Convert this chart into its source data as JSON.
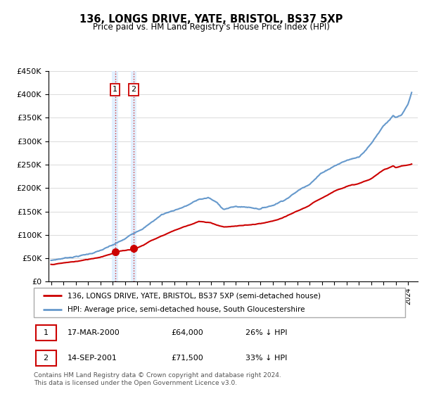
{
  "title": "136, LONGS DRIVE, YATE, BRISTOL, BS37 5XP",
  "subtitle": "Price paid vs. HM Land Registry's House Price Index (HPI)",
  "legend_label_red": "136, LONGS DRIVE, YATE, BRISTOL, BS37 5XP (semi-detached house)",
  "legend_label_blue": "HPI: Average price, semi-detached house, South Gloucestershire",
  "footer": "Contains HM Land Registry data © Crown copyright and database right 2024.\nThis data is licensed under the Open Government Licence v3.0.",
  "sale1_date": "17-MAR-2000",
  "sale1_price": 64000,
  "sale1_pct": "26% ↓ HPI",
  "sale1_x": 2000.21,
  "sale2_date": "14-SEP-2001",
  "sale2_price": 71500,
  "sale2_pct": "33% ↓ HPI",
  "sale2_x": 2001.71,
  "ylim": [
    0,
    450000
  ],
  "xlim_left": 1994.8,
  "xlim_right": 2024.8,
  "red_color": "#cc0000",
  "blue_color": "#6699cc",
  "shade_color": "#ddeeff",
  "hpi_keypoints": [
    [
      1995.0,
      45000
    ],
    [
      1996.0,
      50000
    ],
    [
      1997.0,
      55000
    ],
    [
      1998.0,
      60000
    ],
    [
      1999.0,
      68000
    ],
    [
      2000.0,
      78000
    ],
    [
      2001.0,
      90000
    ],
    [
      2002.0,
      108000
    ],
    [
      2003.0,
      125000
    ],
    [
      2004.0,
      145000
    ],
    [
      2005.0,
      155000
    ],
    [
      2006.0,
      165000
    ],
    [
      2007.0,
      178000
    ],
    [
      2007.8,
      182000
    ],
    [
      2008.5,
      170000
    ],
    [
      2009.0,
      158000
    ],
    [
      2010.0,
      163000
    ],
    [
      2011.0,
      162000
    ],
    [
      2012.0,
      160000
    ],
    [
      2013.0,
      168000
    ],
    [
      2014.0,
      182000
    ],
    [
      2015.0,
      200000
    ],
    [
      2016.0,
      218000
    ],
    [
      2017.0,
      242000
    ],
    [
      2018.0,
      258000
    ],
    [
      2019.0,
      270000
    ],
    [
      2020.0,
      278000
    ],
    [
      2021.0,
      308000
    ],
    [
      2022.0,
      348000
    ],
    [
      2022.8,
      370000
    ],
    [
      2023.0,
      365000
    ],
    [
      2023.5,
      370000
    ],
    [
      2024.0,
      390000
    ],
    [
      2024.3,
      415000
    ]
  ],
  "red_keypoints": [
    [
      1995.0,
      37000
    ],
    [
      1996.0,
      40000
    ],
    [
      1997.0,
      43000
    ],
    [
      1998.0,
      47000
    ],
    [
      1999.0,
      53000
    ],
    [
      2000.21,
      64000
    ],
    [
      2001.71,
      71500
    ],
    [
      2002.5,
      80000
    ],
    [
      2003.0,
      88000
    ],
    [
      2004.0,
      100000
    ],
    [
      2005.0,
      112000
    ],
    [
      2006.0,
      122000
    ],
    [
      2007.0,
      132000
    ],
    [
      2008.0,
      128000
    ],
    [
      2009.0,
      120000
    ],
    [
      2010.0,
      122000
    ],
    [
      2011.0,
      124000
    ],
    [
      2012.0,
      126000
    ],
    [
      2013.0,
      130000
    ],
    [
      2014.0,
      138000
    ],
    [
      2015.0,
      150000
    ],
    [
      2016.0,
      162000
    ],
    [
      2017.0,
      178000
    ],
    [
      2018.0,
      193000
    ],
    [
      2019.0,
      205000
    ],
    [
      2020.0,
      210000
    ],
    [
      2021.0,
      220000
    ],
    [
      2022.0,
      238000
    ],
    [
      2022.8,
      248000
    ],
    [
      2023.0,
      245000
    ],
    [
      2023.5,
      248000
    ],
    [
      2024.0,
      250000
    ],
    [
      2024.3,
      252000
    ]
  ]
}
